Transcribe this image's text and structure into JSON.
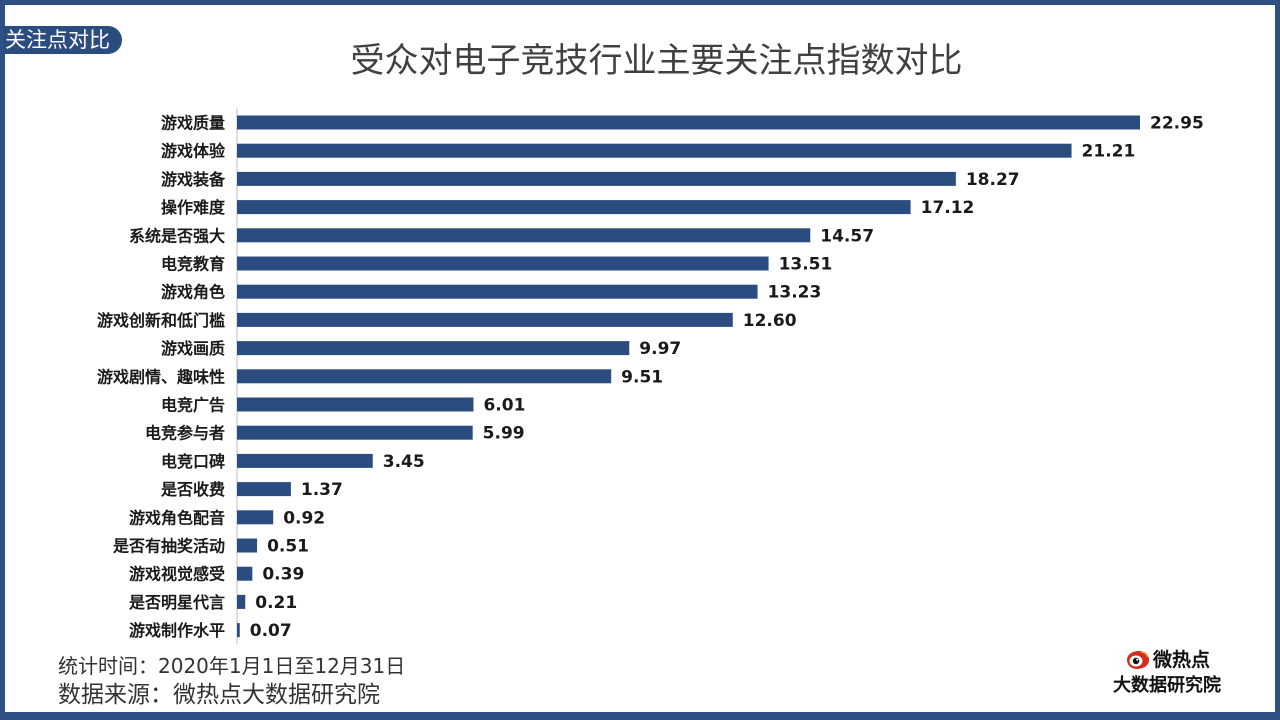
{
  "corner_tag": "关注点对比",
  "footer": {
    "period": "统计时间：2020年1月1日至12月31日",
    "source": "数据来源：微热点大数据研究院"
  },
  "brand": {
    "logo_icon": "weibo-eye-icon",
    "name": "微热点",
    "subtitle": "大数据研究院"
  },
  "colors": {
    "bar": "#2b4c7e",
    "frame": "#2e5082"
  },
  "chart_data": {
    "type": "bar",
    "orientation": "horizontal",
    "title": "受众对电子竞技行业主要关注点指数对比",
    "xlabel": "",
    "ylabel": "",
    "xlim": [
      0,
      23
    ],
    "grid": false,
    "legend": "none",
    "categories": [
      "游戏质量",
      "游戏体验",
      "游戏装备",
      "操作难度",
      "系统是否强大",
      "电竞教育",
      "游戏角色",
      "游戏创新和低门槛",
      "游戏画质",
      "游戏剧情、趣味性",
      "电竞广告",
      "电竞参与者",
      "电竞口碑",
      "是否收费",
      "游戏角色配音",
      "是否有抽奖活动",
      "游戏视觉感受",
      "是否明星代言",
      "游戏制作水平"
    ],
    "values": [
      22.95,
      21.21,
      18.27,
      17.12,
      14.57,
      13.51,
      13.23,
      12.6,
      9.97,
      9.51,
      6.01,
      5.99,
      3.45,
      1.37,
      0.92,
      0.51,
      0.39,
      0.21,
      0.07
    ],
    "value_labels": [
      "22.95",
      "21.21",
      "18.27",
      "17.12",
      "14.57",
      "13.51",
      "13.23",
      "12.60",
      "9.97",
      "9.51",
      "6.01",
      "5.99",
      "3.45",
      "1.37",
      "0.92",
      "0.51",
      "0.39",
      "0.21",
      "0.07"
    ]
  }
}
